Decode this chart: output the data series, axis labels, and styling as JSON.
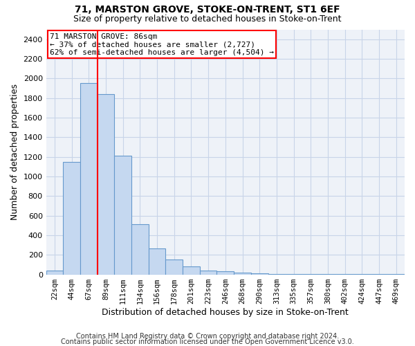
{
  "title1": "71, MARSTON GROVE, STOKE-ON-TRENT, ST1 6EF",
  "title2": "Size of property relative to detached houses in Stoke-on-Trent",
  "xlabel": "Distribution of detached houses by size in Stoke-on-Trent",
  "ylabel": "Number of detached properties",
  "bin_labels": [
    "22sqm",
    "44sqm",
    "67sqm",
    "89sqm",
    "111sqm",
    "134sqm",
    "156sqm",
    "178sqm",
    "201sqm",
    "223sqm",
    "246sqm",
    "268sqm",
    "290sqm",
    "313sqm",
    "335sqm",
    "357sqm",
    "380sqm",
    "402sqm",
    "424sqm",
    "447sqm",
    "469sqm"
  ],
  "bar_heights": [
    40,
    1150,
    1950,
    1840,
    1210,
    510,
    265,
    150,
    80,
    40,
    30,
    20,
    10,
    5,
    5,
    3,
    2,
    2,
    1,
    1,
    3
  ],
  "bar_color": "#c5d8f0",
  "bar_edgecolor": "#6699cc",
  "red_line_x": 3,
  "annotation_text": "71 MARSTON GROVE: 86sqm\n← 37% of detached houses are smaller (2,727)\n62% of semi-detached houses are larger (4,504) →",
  "annotation_box_color": "white",
  "annotation_box_edgecolor": "red",
  "ylim_max": 2500,
  "yticks": [
    0,
    200,
    400,
    600,
    800,
    1000,
    1200,
    1400,
    1600,
    1800,
    2000,
    2200,
    2400
  ],
  "footer1": "Contains HM Land Registry data © Crown copyright and database right 2024.",
  "footer2": "Contains public sector information licensed under the Open Government Licence v3.0.",
  "grid_color": "#c8d4e8",
  "bg_color": "#eef2f8"
}
